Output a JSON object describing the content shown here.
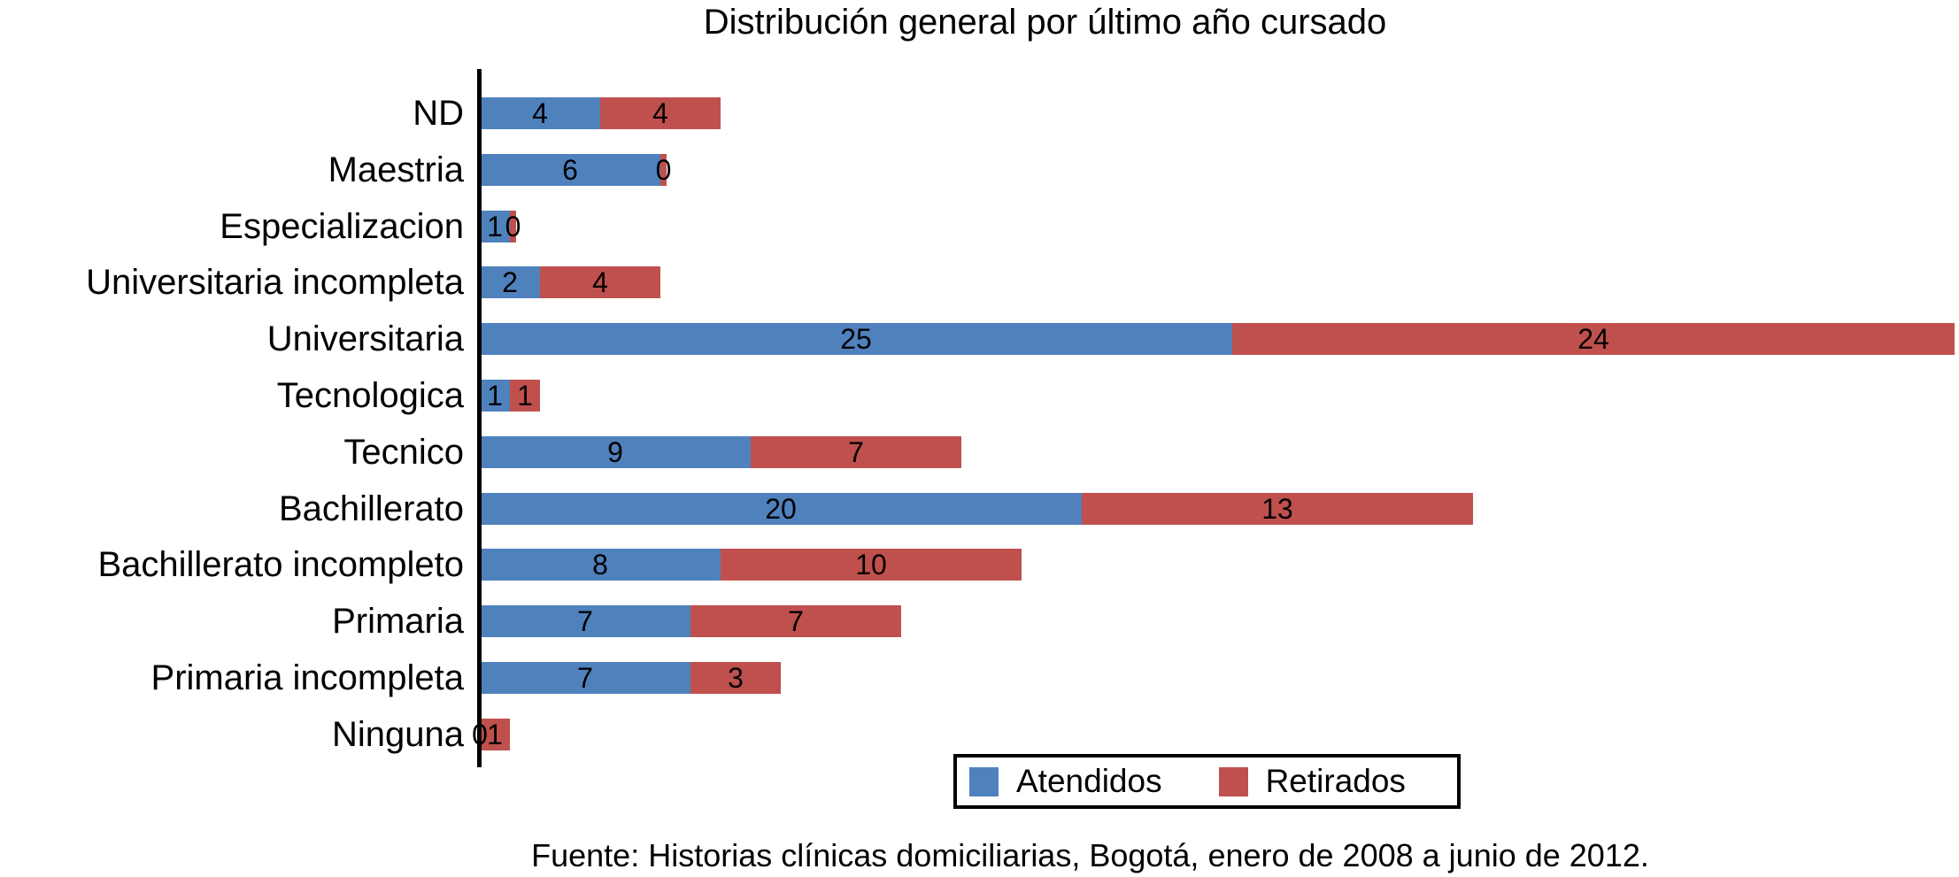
{
  "title": "Distribución general por último año cursado",
  "source": "Fuente: Historias clínicas domiciliarias, Bogotá, enero de 2008 a junio de 2012.",
  "legend": {
    "atendidos": "Atendidos",
    "retirados": "Retirados"
  },
  "colors": {
    "atendidos": "#4F81BD",
    "retirados": "#C0504D",
    "axis": "#000000",
    "label": "#000000"
  },
  "chart_data": {
    "type": "bar",
    "orientation": "horizontal",
    "stacked": true,
    "title": "Distribución general por último año cursado",
    "categories": [
      "ND",
      "Maestria",
      "Especializacion",
      "Universitaria incompleta",
      "Universitaria",
      "Tecnologica",
      "Tecnico",
      "Bachillerato",
      "Bachillerato incompleto",
      "Primaria",
      "Primaria incompleta",
      "Ninguna"
    ],
    "series": [
      {
        "name": "Atendidos",
        "color": "#4F81BD",
        "values": [
          4,
          6,
          1,
          2,
          25,
          1,
          9,
          20,
          8,
          7,
          7,
          0
        ]
      },
      {
        "name": "Retirados",
        "color": "#C0504D",
        "values": [
          4,
          0,
          0,
          4,
          24,
          1,
          7,
          13,
          10,
          7,
          3,
          1
        ]
      }
    ],
    "xlim": [
      0,
      49
    ],
    "grid": false,
    "data_labels": true,
    "legend_position": "bottom-right",
    "caption": "Fuente: Historias clínicas domiciliarias, Bogotá, enero de 2008 a junio de 2012."
  }
}
